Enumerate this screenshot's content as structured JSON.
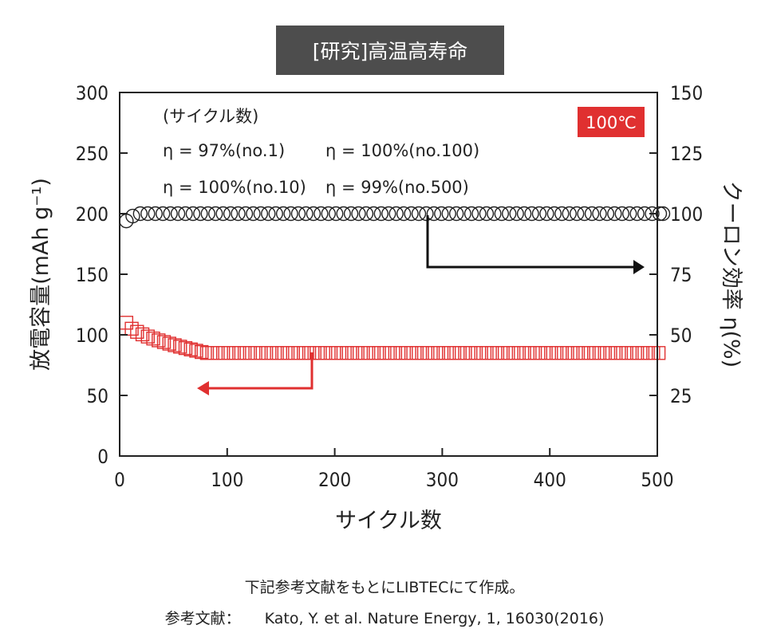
{
  "title": "[研究]高温高寿命",
  "badge": {
    "label": "100℃",
    "color": "#e03030"
  },
  "chart_data": {
    "type": "scatter",
    "x_axis": {
      "label": "サイクル数",
      "range": [
        0,
        500
      ],
      "ticks": [
        "0",
        "100",
        "200",
        "300",
        "400",
        "500"
      ],
      "tick_values": [
        0,
        100,
        200,
        300,
        400,
        500
      ]
    },
    "y_left": {
      "label": "放電容量(mAh g⁻¹)",
      "range": [
        0,
        300
      ],
      "ticks": [
        "0",
        "50",
        "100",
        "150",
        "200",
        "250",
        "300"
      ],
      "tick_values": [
        0,
        50,
        100,
        150,
        200,
        250,
        300
      ]
    },
    "y_right": {
      "label": "クーロン効率 η(%)",
      "range": [
        0,
        150
      ],
      "ticks": [
        "25",
        "50",
        "75",
        "100",
        "125",
        "150"
      ],
      "tick_values": [
        25,
        50,
        75,
        100,
        125,
        150
      ]
    },
    "legend_heading": "(サイクル数)",
    "annotations": [
      {
        "text": "η = 97%(no.1)"
      },
      {
        "text": "η = 100%(no.100)"
      },
      {
        "text": "η = 100%(no.10)"
      },
      {
        "text": "η = 99%(no.500)"
      }
    ],
    "series": [
      {
        "marker": "circle",
        "axis": "right",
        "color": "#222222",
        "start": 1,
        "end": 500,
        "step": 7,
        "first_value": 97,
        "second_value": 99,
        "steady_value": 100
      },
      {
        "marker": "square",
        "axis": "left",
        "color": "#e03030",
        "start": 1,
        "end": 500,
        "step": 5,
        "initial_value": 110,
        "steady_value": 85,
        "decay_end": 75
      }
    ]
  },
  "notes": {
    "line1": "下記参考文献をもとにLIBTECにて作成。",
    "ref_label": "参考文献：",
    "ref_text": "Kato, Y. et al. Nature Energy, 1, 16030(2016)"
  }
}
